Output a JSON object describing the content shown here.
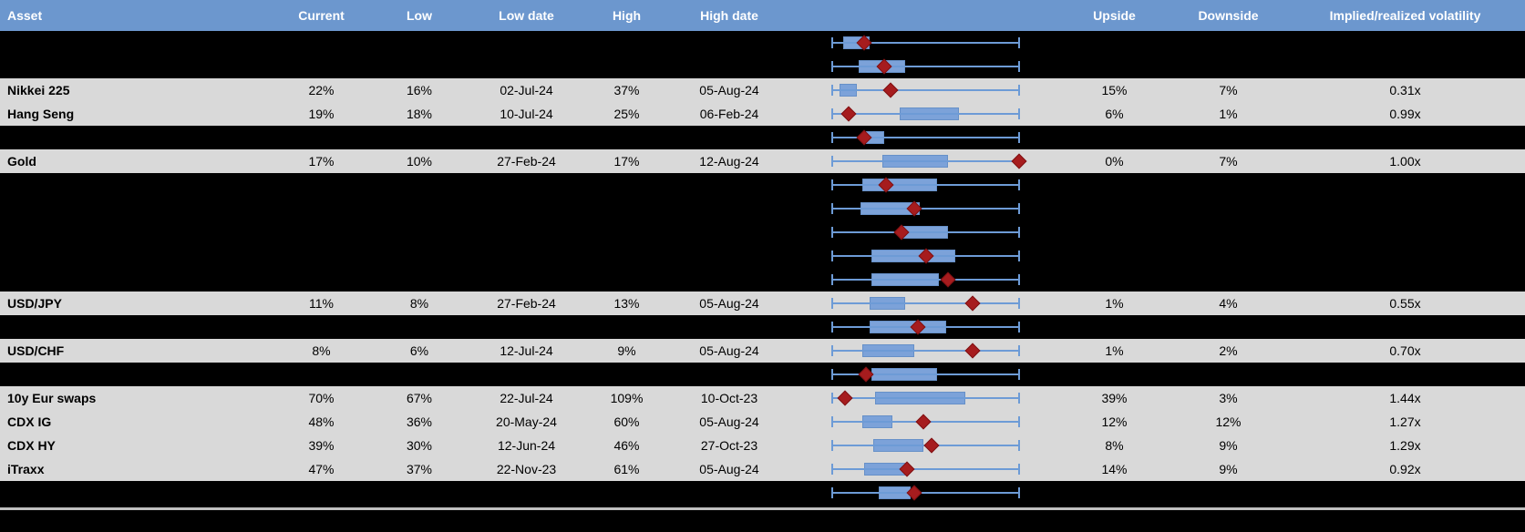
{
  "header": {
    "columns": [
      {
        "key": "asset",
        "label": "Asset"
      },
      {
        "key": "current",
        "label": "Current"
      },
      {
        "key": "low",
        "label": "Low"
      },
      {
        "key": "low_date",
        "label": "Low date"
      },
      {
        "key": "high",
        "label": "High"
      },
      {
        "key": "high_date",
        "label": "High date"
      },
      {
        "key": "chart",
        "label": ""
      },
      {
        "key": "upside",
        "label": "Upside"
      },
      {
        "key": "downside",
        "label": "Downside"
      },
      {
        "key": "implied",
        "label": "Implied/realized volatility"
      }
    ]
  },
  "colors": {
    "header_bg": "#6C97CE",
    "header_text": "#FFFFFF",
    "row_light_bg": "#D9D9D9",
    "row_dark_bg": "#000000",
    "text": "#000000",
    "whisker_blue": "#6D9BD6",
    "box_fill": "#7CA2D9",
    "box_border": "#6690C8",
    "marker_red": "#A61C1E",
    "marker_border": "#7E1012",
    "divider_gray": "#BFBFBF"
  },
  "chart_data": {
    "type": "table",
    "title": "Implied volatility monitor with 52-week range box plots",
    "description": "Each row shows implied vol stats; the embedded box-and-whisker chart spans the row's 52-week range (values normalized 0-1), red diamond marks the current level. Rows flagged redacted are blacked out with only the box plot visible.",
    "columns": [
      "Asset",
      "Current",
      "Low",
      "Low date",
      "High",
      "High date",
      "52w range boxplot",
      "Upside",
      "Downside",
      "Implied/realized volatility"
    ],
    "rows": [
      {
        "redacted": true,
        "boxplot": {
          "whisker": [
            0,
            1
          ],
          "box": [
            0.06,
            0.2
          ],
          "marker": 0.17
        }
      },
      {
        "redacted": true,
        "boxplot": {
          "whisker": [
            0,
            1
          ],
          "box": [
            0.14,
            0.39
          ],
          "marker": 0.28
        }
      },
      {
        "redacted": false,
        "asset": "Nikkei 225",
        "current": "22%",
        "low": "16%",
        "low_date": "02-Jul-24",
        "high": "37%",
        "high_date": "05-Aug-24",
        "upside": "15%",
        "downside": "7%",
        "implied": "0.31x",
        "boxplot": {
          "whisker": [
            0,
            1
          ],
          "box": [
            0.04,
            0.13
          ],
          "marker": 0.31
        }
      },
      {
        "redacted": false,
        "asset": "Hang Seng",
        "current": "19%",
        "low": "18%",
        "low_date": "10-Jul-24",
        "high": "25%",
        "high_date": "06-Feb-24",
        "upside": "6%",
        "downside": "1%",
        "implied": "0.99x",
        "boxplot": {
          "whisker": [
            0,
            1
          ],
          "box": [
            0.36,
            0.68
          ],
          "marker": 0.09
        }
      },
      {
        "redacted": true,
        "boxplot": {
          "whisker": [
            0,
            1
          ],
          "box": [
            0.18,
            0.28
          ],
          "marker": 0.17
        }
      },
      {
        "redacted": false,
        "asset": "Gold",
        "current": "17%",
        "low": "10%",
        "low_date": "27-Feb-24",
        "high": "17%",
        "high_date": "12-Aug-24",
        "upside": "0%",
        "downside": "7%",
        "implied": "1.00x",
        "boxplot": {
          "whisker": [
            0,
            1
          ],
          "box": [
            0.27,
            0.62
          ],
          "marker": 1.0
        }
      },
      {
        "redacted": true,
        "boxplot": {
          "whisker": [
            0,
            1
          ],
          "box": [
            0.16,
            0.56
          ],
          "marker": 0.29
        }
      },
      {
        "redacted": true,
        "boxplot": {
          "whisker": [
            0,
            1
          ],
          "box": [
            0.15,
            0.47
          ],
          "marker": 0.44
        }
      },
      {
        "redacted": true,
        "boxplot": {
          "whisker": [
            0,
            1
          ],
          "box": [
            0.36,
            0.62
          ],
          "marker": 0.37
        }
      },
      {
        "redacted": true,
        "boxplot": {
          "whisker": [
            0,
            1
          ],
          "box": [
            0.21,
            0.66
          ],
          "marker": 0.5
        }
      },
      {
        "redacted": true,
        "boxplot": {
          "whisker": [
            0,
            1
          ],
          "box": [
            0.21,
            0.57
          ],
          "marker": 0.62
        }
      },
      {
        "redacted": false,
        "asset": "USD/JPY",
        "current": "11%",
        "low": "8%",
        "low_date": "27-Feb-24",
        "high": "13%",
        "high_date": "05-Aug-24",
        "upside": "1%",
        "downside": "4%",
        "implied": "0.55x",
        "boxplot": {
          "whisker": [
            0,
            1
          ],
          "box": [
            0.2,
            0.39
          ],
          "marker": 0.75
        }
      },
      {
        "redacted": true,
        "boxplot": {
          "whisker": [
            0,
            1
          ],
          "box": [
            0.2,
            0.61
          ],
          "marker": 0.46
        }
      },
      {
        "redacted": false,
        "asset": "USD/CHF",
        "current": "8%",
        "low": "6%",
        "low_date": "12-Jul-24",
        "high": "9%",
        "high_date": "05-Aug-24",
        "upside": "1%",
        "downside": "2%",
        "implied": "0.70x",
        "boxplot": {
          "whisker": [
            0,
            1
          ],
          "box": [
            0.16,
            0.44
          ],
          "marker": 0.75
        }
      },
      {
        "redacted": true,
        "boxplot": {
          "whisker": [
            0,
            1
          ],
          "box": [
            0.21,
            0.56
          ],
          "marker": 0.18
        }
      },
      {
        "redacted": false,
        "asset": "10y Eur swaps",
        "current": "70%",
        "low": "67%",
        "low_date": "22-Jul-24",
        "high": "109%",
        "high_date": "10-Oct-23",
        "upside": "39%",
        "downside": "3%",
        "implied": "1.44x",
        "boxplot": {
          "whisker": [
            0,
            1
          ],
          "box": [
            0.23,
            0.71
          ],
          "marker": 0.07
        }
      },
      {
        "redacted": false,
        "asset": "CDX IG",
        "current": "48%",
        "low": "36%",
        "low_date": "20-May-24",
        "high": "60%",
        "high_date": "05-Aug-24",
        "upside": "12%",
        "downside": "12%",
        "implied": "1.27x",
        "boxplot": {
          "whisker": [
            0,
            1
          ],
          "box": [
            0.16,
            0.32
          ],
          "marker": 0.49
        }
      },
      {
        "redacted": false,
        "asset": "CDX HY",
        "current": "39%",
        "low": "30%",
        "low_date": "12-Jun-24",
        "high": "46%",
        "high_date": "27-Oct-23",
        "upside": "8%",
        "downside": "9%",
        "implied": "1.29x",
        "boxplot": {
          "whisker": [
            0,
            1
          ],
          "box": [
            0.22,
            0.49
          ],
          "marker": 0.53
        }
      },
      {
        "redacted": false,
        "asset": "iTraxx",
        "current": "47%",
        "low": "37%",
        "low_date": "22-Nov-23",
        "high": "61%",
        "high_date": "05-Aug-24",
        "upside": "14%",
        "downside": "9%",
        "implied": "0.92x",
        "boxplot": {
          "whisker": [
            0,
            1
          ],
          "box": [
            0.17,
            0.41
          ],
          "marker": 0.4
        }
      },
      {
        "redacted": true,
        "boxplot": {
          "whisker": [
            0,
            1
          ],
          "box": [
            0.25,
            0.42
          ],
          "marker": 0.44
        }
      }
    ]
  }
}
